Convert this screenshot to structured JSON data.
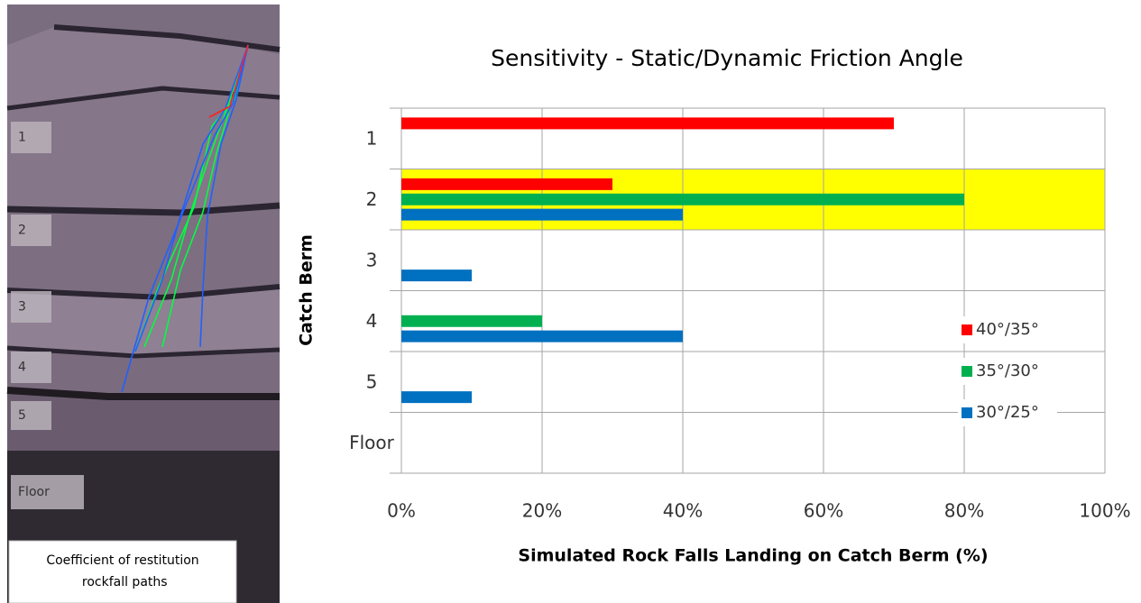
{
  "image_panel": {
    "labels": [
      "1",
      "2",
      "3",
      "4",
      "5",
      "Floor"
    ],
    "caption": "Coefficient of restitution rockfall paths"
  },
  "chart_data": {
    "type": "barh",
    "title": "Sensitivity - Static/Dynamic Friction Angle",
    "xlabel": "Simulated Rock Falls Landing on Catch Berm (%)",
    "ylabel": "Catch Berm",
    "categories": [
      "1",
      "2",
      "3",
      "4",
      "5",
      "Floor"
    ],
    "series": [
      {
        "name": "40°/35°",
        "color": "#ff0000",
        "values": [
          70,
          30,
          0,
          0,
          0,
          0
        ]
      },
      {
        "name": "35°/30°",
        "color": "#00b050",
        "values": [
          0,
          80,
          0,
          20,
          0,
          0
        ]
      },
      {
        "name": "30°/25°",
        "color": "#0070c0",
        "values": [
          0,
          40,
          10,
          40,
          10,
          0
        ]
      }
    ],
    "xlim": [
      0,
      100
    ],
    "xticks": [
      {
        "value": 0,
        "label": "0%"
      },
      {
        "value": 20,
        "label": "20%"
      },
      {
        "value": 40,
        "label": "40%"
      },
      {
        "value": 60,
        "label": "60%"
      },
      {
        "value": 80,
        "label": "80%"
      },
      {
        "value": 100,
        "label": "100%"
      }
    ],
    "grid": true,
    "legend": "right",
    "highlight": {
      "category": "2",
      "color": "#ffff00"
    }
  }
}
